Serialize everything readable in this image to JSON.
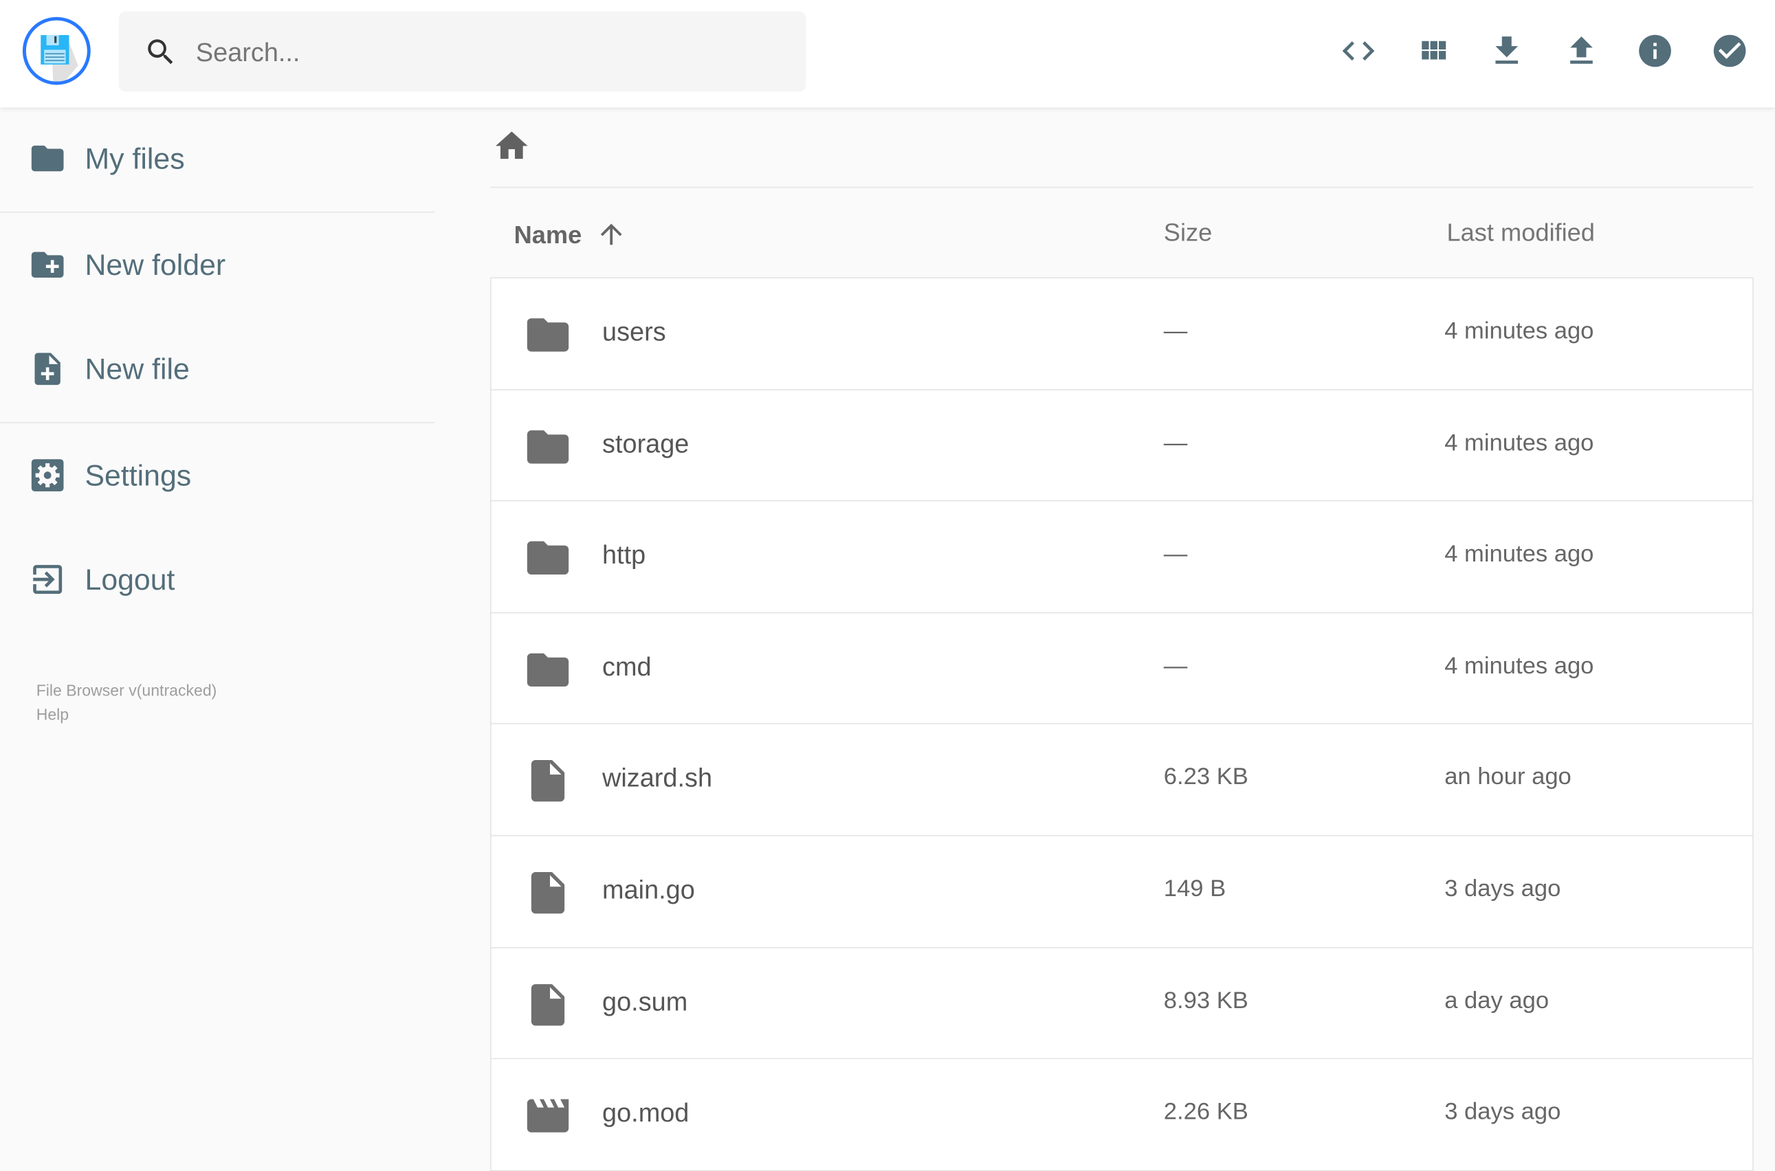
{
  "header": {
    "search_placeholder": "Search...",
    "icons": [
      "code-icon",
      "grid-view-icon",
      "download-icon",
      "upload-icon",
      "info-icon",
      "check-circle-icon"
    ],
    "accent": "#2979ff",
    "icon_color": "#546e7a"
  },
  "sidebar": {
    "items": [
      {
        "label": "My files",
        "icon": "folder-icon"
      },
      {
        "label": "New folder",
        "icon": "folder-plus-icon"
      },
      {
        "label": "New file",
        "icon": "file-plus-icon"
      },
      {
        "label": "Settings",
        "icon": "gear-icon"
      },
      {
        "label": "Logout",
        "icon": "logout-icon"
      }
    ],
    "footer": {
      "version": "File Browser v(untracked)",
      "help": "Help"
    }
  },
  "list": {
    "columns": {
      "name": "Name",
      "size": "Size",
      "modified": "Last modified"
    },
    "sort": "name-ascending",
    "rows": [
      {
        "name": "users",
        "size": "—",
        "modified": "4 minutes ago",
        "type": "folder"
      },
      {
        "name": "storage",
        "size": "—",
        "modified": "4 minutes ago",
        "type": "folder"
      },
      {
        "name": "http",
        "size": "—",
        "modified": "4 minutes ago",
        "type": "folder"
      },
      {
        "name": "cmd",
        "size": "—",
        "modified": "4 minutes ago",
        "type": "folder"
      },
      {
        "name": "wizard.sh",
        "size": "6.23 KB",
        "modified": "an hour ago",
        "type": "file"
      },
      {
        "name": "main.go",
        "size": "149 B",
        "modified": "3 days ago",
        "type": "file"
      },
      {
        "name": "go.sum",
        "size": "8.93 KB",
        "modified": "a day ago",
        "type": "file"
      },
      {
        "name": "go.mod",
        "size": "2.26 KB",
        "modified": "3 days ago",
        "type": "video"
      }
    ]
  }
}
